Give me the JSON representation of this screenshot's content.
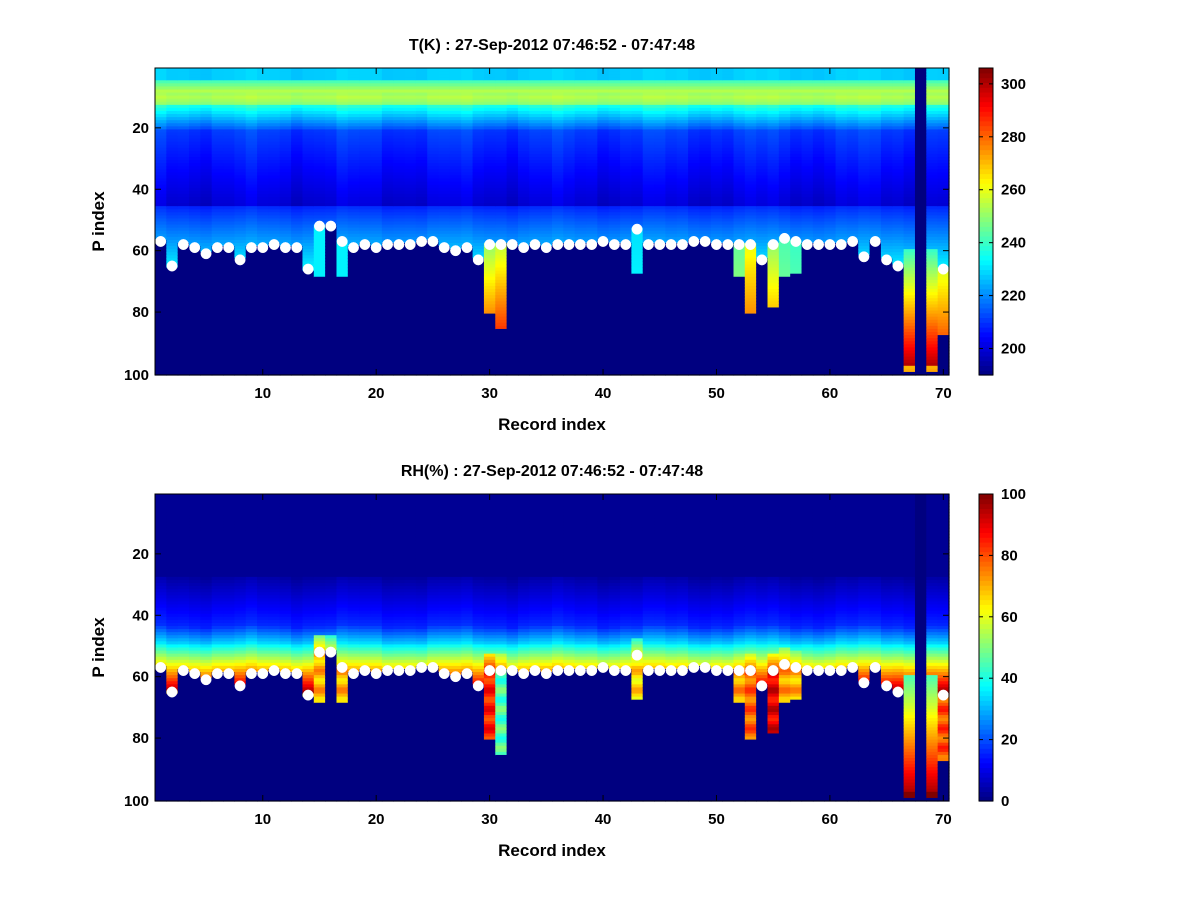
{
  "chart_data": [
    {
      "type": "heatmap",
      "title": "T(K) : 27-Sep-2012 07:46:52 - 07:47:48",
      "xlabel": "Record index",
      "ylabel": "P index",
      "xlim": [
        0.5,
        70.5
      ],
      "ylim": [
        100,
        1
      ],
      "y_reversed": true,
      "xticks": [
        10,
        20,
        30,
        40,
        50,
        60,
        70
      ],
      "yticks": [
        20,
        40,
        60,
        80,
        100
      ],
      "colormap": "jet",
      "colorbar": {
        "range": [
          190,
          306
        ],
        "ticks": [
          200,
          220,
          240,
          260,
          280,
          300
        ]
      },
      "grid": false,
      "legend": "none",
      "records": [
        1,
        2,
        3,
        4,
        5,
        6,
        7,
        8,
        9,
        10,
        11,
        12,
        13,
        14,
        15,
        16,
        17,
        18,
        19,
        20,
        21,
        22,
        23,
        24,
        25,
        26,
        27,
        28,
        29,
        30,
        31,
        32,
        33,
        34,
        35,
        36,
        37,
        38,
        39,
        40,
        41,
        42,
        43,
        44,
        45,
        46,
        47,
        48,
        49,
        50,
        51,
        52,
        53,
        54,
        55,
        56,
        57,
        58,
        59,
        60,
        61,
        62,
        63,
        64,
        65,
        66,
        67,
        68,
        69,
        70
      ],
      "surface_p_index": [
        57,
        65,
        58,
        59,
        61,
        59,
        59,
        63,
        59,
        59,
        58,
        59,
        59,
        66,
        52,
        52,
        57,
        59,
        58,
        59,
        58,
        58,
        58,
        57,
        57,
        59,
        60,
        59,
        63,
        58,
        58,
        58,
        59,
        58,
        59,
        58,
        58,
        58,
        58,
        57,
        58,
        58,
        53,
        58,
        58,
        58,
        58,
        57,
        57,
        58,
        58,
        58,
        58,
        63,
        58,
        56,
        57,
        58,
        58,
        58,
        58,
        57,
        62,
        57,
        63,
        65,
        100,
        100,
        100,
        66
      ],
      "surface_value": [
        232,
        232,
        232,
        232,
        232,
        232,
        232,
        258,
        232,
        232,
        232,
        232,
        232,
        232,
        232,
        232,
        232,
        232,
        232,
        232,
        232,
        232,
        232,
        232,
        232,
        232,
        232,
        232,
        232,
        250,
        255,
        232,
        232,
        232,
        232,
        232,
        232,
        232,
        232,
        232,
        232,
        232,
        230,
        232,
        232,
        232,
        232,
        232,
        232,
        232,
        232,
        245,
        260,
        232,
        250,
        242,
        240,
        232,
        232,
        232,
        232,
        232,
        232,
        232,
        232,
        232,
        262,
        190,
        262,
        258
      ],
      "intrusions": [
        {
          "record": 2,
          "to_p": 65,
          "value": 232
        },
        {
          "record": 14,
          "to_p": 66,
          "value": 238
        },
        {
          "record": 15,
          "to_p": 68,
          "value": 232
        },
        {
          "record": 17,
          "to_p": 68,
          "value": 232
        },
        {
          "record": 30,
          "to_p": 80,
          "value": 275
        },
        {
          "record": 31,
          "to_p": 85,
          "value": 285
        },
        {
          "record": 43,
          "to_p": 67,
          "value": 232
        },
        {
          "record": 52,
          "to_p": 68,
          "value": 248
        },
        {
          "record": 53,
          "to_p": 80,
          "value": 275
        },
        {
          "record": 55,
          "to_p": 78,
          "value": 268
        },
        {
          "record": 56,
          "to_p": 68,
          "value": 245
        },
        {
          "record": 57,
          "to_p": 67,
          "value": 242
        },
        {
          "record": 67,
          "to_p": 97,
          "value": 295
        },
        {
          "record": 69,
          "to_p": 97,
          "value": 298
        },
        {
          "record": 70,
          "to_p": 87,
          "value": 280
        }
      ],
      "markers_p_index": [
        57,
        65,
        58,
        59,
        61,
        59,
        59,
        63,
        59,
        59,
        58,
        59,
        59,
        66,
        52,
        52,
        57,
        59,
        58,
        59,
        58,
        58,
        58,
        57,
        57,
        59,
        60,
        59,
        63,
        58,
        58,
        58,
        59,
        58,
        59,
        58,
        58,
        58,
        58,
        57,
        58,
        58,
        53,
        58,
        58,
        58,
        58,
        57,
        57,
        58,
        58,
        58,
        58,
        63,
        58,
        56,
        57,
        58,
        58,
        58,
        58,
        57,
        62,
        57,
        63,
        65,
        null,
        null,
        null,
        66
      ]
    },
    {
      "type": "heatmap",
      "title": "RH(%) : 27-Sep-2012 07:46:52 - 07:47:48",
      "xlabel": "Record index",
      "ylabel": "P index",
      "xlim": [
        0.5,
        70.5
      ],
      "ylim": [
        100,
        1
      ],
      "y_reversed": true,
      "xticks": [
        10,
        20,
        30,
        40,
        50,
        60,
        70
      ],
      "yticks": [
        20,
        40,
        60,
        80,
        100
      ],
      "colormap": "jet",
      "colorbar": {
        "range": [
          0,
          100
        ],
        "ticks": [
          0,
          20,
          40,
          60,
          80,
          100
        ]
      },
      "grid": false,
      "legend": "none",
      "records": [
        1,
        2,
        3,
        4,
        5,
        6,
        7,
        8,
        9,
        10,
        11,
        12,
        13,
        14,
        15,
        16,
        17,
        18,
        19,
        20,
        21,
        22,
        23,
        24,
        25,
        26,
        27,
        28,
        29,
        30,
        31,
        32,
        33,
        34,
        35,
        36,
        37,
        38,
        39,
        40,
        41,
        42,
        43,
        44,
        45,
        46,
        47,
        48,
        49,
        50,
        51,
        52,
        53,
        54,
        55,
        56,
        57,
        58,
        59,
        60,
        61,
        62,
        63,
        64,
        65,
        66,
        67,
        68,
        69,
        70
      ],
      "surface_p_index": [
        57,
        65,
        58,
        59,
        61,
        59,
        59,
        63,
        59,
        59,
        58,
        59,
        59,
        66,
        52,
        52,
        57,
        59,
        58,
        59,
        58,
        58,
        58,
        57,
        57,
        59,
        60,
        59,
        63,
        58,
        58,
        58,
        59,
        58,
        59,
        58,
        58,
        58,
        58,
        57,
        58,
        58,
        53,
        58,
        58,
        58,
        58,
        57,
        57,
        58,
        58,
        58,
        58,
        63,
        58,
        56,
        57,
        58,
        58,
        58,
        58,
        57,
        62,
        57,
        63,
        65,
        100,
        100,
        100,
        66
      ],
      "surface_value": [
        62,
        62,
        62,
        62,
        62,
        62,
        62,
        70,
        62,
        62,
        62,
        62,
        62,
        62,
        70,
        62,
        68,
        62,
        62,
        62,
        62,
        62,
        62,
        62,
        62,
        62,
        62,
        62,
        62,
        85,
        75,
        62,
        62,
        62,
        62,
        62,
        62,
        62,
        62,
        62,
        62,
        62,
        62,
        62,
        62,
        62,
        62,
        62,
        62,
        62,
        62,
        72,
        78,
        62,
        82,
        72,
        70,
        62,
        62,
        62,
        62,
        62,
        62,
        62,
        62,
        62,
        88,
        2,
        90,
        75
      ],
      "intrusions": [
        {
          "record": 2,
          "to_p": 65,
          "value": 62
        },
        {
          "record": 14,
          "to_p": 66,
          "value": 60
        },
        {
          "record": 15,
          "to_p": 68,
          "value": 70
        },
        {
          "record": 17,
          "to_p": 68,
          "value": 70
        },
        {
          "record": 30,
          "to_p": 80,
          "value": 85
        },
        {
          "record": 31,
          "to_p": 85,
          "value": 45
        },
        {
          "record": 43,
          "to_p": 67,
          "value": 66
        },
        {
          "record": 52,
          "to_p": 68,
          "value": 72
        },
        {
          "record": 53,
          "to_p": 80,
          "value": 78
        },
        {
          "record": 55,
          "to_p": 78,
          "value": 90
        },
        {
          "record": 56,
          "to_p": 68,
          "value": 72
        },
        {
          "record": 57,
          "to_p": 67,
          "value": 70
        },
        {
          "record": 67,
          "to_p": 97,
          "value": 88
        },
        {
          "record": 69,
          "to_p": 97,
          "value": 92
        },
        {
          "record": 70,
          "to_p": 87,
          "value": 80
        }
      ],
      "markers_p_index": [
        57,
        65,
        58,
        59,
        61,
        59,
        59,
        63,
        59,
        59,
        58,
        59,
        59,
        66,
        52,
        52,
        57,
        59,
        58,
        59,
        58,
        58,
        58,
        57,
        57,
        59,
        60,
        59,
        63,
        58,
        58,
        58,
        59,
        58,
        59,
        58,
        58,
        58,
        58,
        57,
        58,
        58,
        53,
        58,
        58,
        58,
        58,
        57,
        57,
        58,
        58,
        58,
        58,
        63,
        58,
        56,
        57,
        58,
        58,
        58,
        58,
        57,
        62,
        57,
        63,
        65,
        null,
        null,
        null,
        66
      ]
    }
  ]
}
